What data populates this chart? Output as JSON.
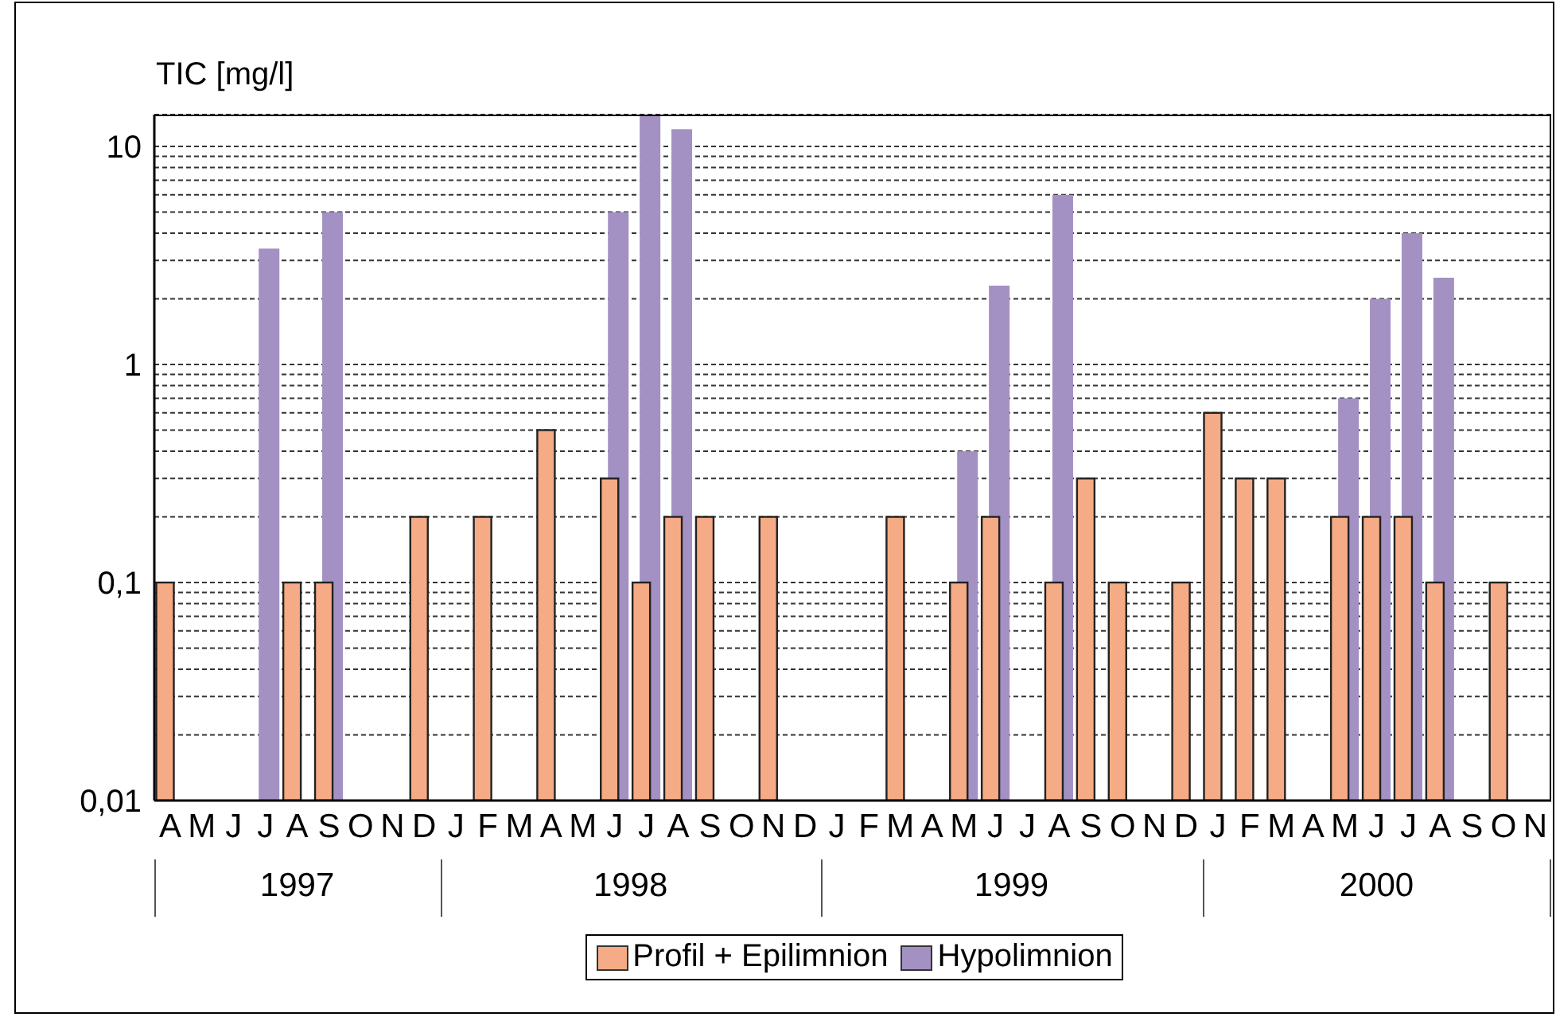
{
  "chart_data": {
    "type": "bar",
    "ylabel": "TIC [mg/l]",
    "categories": [
      "A",
      "M",
      "J",
      "J",
      "A",
      "S",
      "O",
      "N",
      "D",
      "J",
      "F",
      "M",
      "A",
      "M",
      "J",
      "J",
      "A",
      "S",
      "O",
      "N",
      "D",
      "J",
      "F",
      "M",
      "A",
      "M",
      "J",
      "J",
      "A",
      "S",
      "O",
      "N",
      "D",
      "J",
      "F",
      "M",
      "A",
      "M",
      "J",
      "J",
      "A",
      "S",
      "O",
      "N"
    ],
    "series": [
      {
        "name": "Profil + Epilimnion",
        "color": "#f5ab85",
        "values": [
          0.1,
          null,
          null,
          null,
          0.1,
          0.1,
          null,
          null,
          0.2,
          null,
          0.2,
          null,
          0.5,
          null,
          0.3,
          0.1,
          0.2,
          0.2,
          null,
          0.2,
          null,
          null,
          null,
          0.2,
          null,
          0.1,
          0.2,
          null,
          0.1,
          0.3,
          0.1,
          null,
          0.1,
          0.6,
          0.3,
          0.3,
          null,
          0.2,
          0.2,
          0.2,
          0.1,
          null,
          0.1,
          null
        ]
      },
      {
        "name": "Hypolimnion",
        "color": "#a391c3",
        "values": [
          null,
          null,
          null,
          3.4,
          null,
          5,
          null,
          null,
          null,
          null,
          null,
          null,
          null,
          null,
          5,
          14,
          12,
          null,
          null,
          null,
          null,
          null,
          null,
          null,
          null,
          0.4,
          2.3,
          null,
          6,
          null,
          null,
          null,
          null,
          null,
          null,
          null,
          null,
          0.7,
          2,
          4,
          2.5,
          null,
          null,
          null
        ]
      }
    ],
    "log": true,
    "ylim": [
      0.01,
      14
    ],
    "yticks": [
      {
        "value": 0.01,
        "label": "0,01"
      },
      {
        "value": 0.02,
        "label": null
      },
      {
        "value": 0.03,
        "label": null
      },
      {
        "value": 0.04,
        "label": null
      },
      {
        "value": 0.05,
        "label": null
      },
      {
        "value": 0.06,
        "label": null
      },
      {
        "value": 0.07,
        "label": null
      },
      {
        "value": 0.08,
        "label": null
      },
      {
        "value": 0.09,
        "label": null
      },
      {
        "value": 0.1,
        "label": "0,1"
      },
      {
        "value": 0.2,
        "label": null
      },
      {
        "value": 0.3,
        "label": null
      },
      {
        "value": 0.4,
        "label": null
      },
      {
        "value": 0.5,
        "label": null
      },
      {
        "value": 0.6,
        "label": null
      },
      {
        "value": 0.7,
        "label": null
      },
      {
        "value": 0.8,
        "label": null
      },
      {
        "value": 0.9,
        "label": null
      },
      1,
      {
        "value": 2,
        "label": null
      },
      {
        "value": 3,
        "label": null
      },
      {
        "value": 4,
        "label": null
      },
      {
        "value": 5,
        "label": null
      },
      {
        "value": 6,
        "label": null
      },
      {
        "value": 7,
        "label": null
      },
      {
        "value": 8,
        "label": null
      },
      {
        "value": 9,
        "label": null
      },
      10
    ],
    "grid": "y",
    "legend": "bottom",
    "annotations": [
      "1997",
      "1998",
      "1999",
      "2000"
    ]
  }
}
